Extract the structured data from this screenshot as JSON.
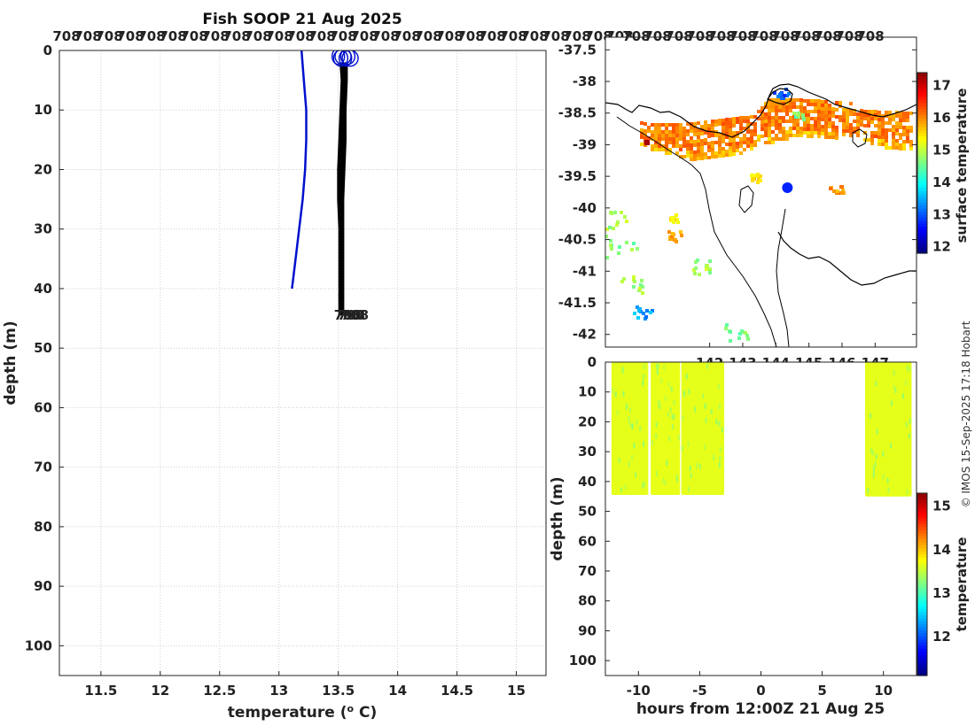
{
  "title": "Fish SOOP 21 Aug 2025",
  "credit": "© IMOS 15-Sep-2025 17:18 Hobart",
  "profile_tag": "708",
  "colors": {
    "profile": "#000000",
    "climatology": "#0011cc",
    "position_marker": "#0022ff",
    "coast": "#000000"
  },
  "chart_data": [
    {
      "type": "line",
      "name": "temperature-profile",
      "xlabel": "temperature (",
      "xlabel_unit": "o",
      "xlabel_suffix": " C)",
      "ylabel": "depth (m)",
      "xlim": [
        11.15,
        15.25
      ],
      "ylim": [
        0,
        105
      ],
      "y_reversed": true,
      "xticks": [
        11.5,
        12,
        12.5,
        13,
        13.5,
        14,
        14.5,
        15
      ],
      "yticks": [
        0,
        10,
        20,
        30,
        40,
        50,
        60,
        70,
        80,
        90,
        100
      ],
      "grid": true,
      "series": [
        {
          "color": "#0011cc",
          "style": "line",
          "x": [
            13.19,
            13.21,
            13.23,
            13.23,
            13.22,
            13.2,
            13.17,
            13.14,
            13.11
          ],
          "y": [
            0,
            5,
            10,
            15,
            20,
            25,
            30,
            35,
            40
          ]
        },
        {
          "color": "#000000",
          "style": "band",
          "x_min": [
            13.51,
            13.52,
            13.51,
            13.5,
            13.49,
            13.49,
            13.5,
            13.5,
            13.5,
            13.5
          ],
          "x_max": [
            13.58,
            13.58,
            13.57,
            13.57,
            13.56,
            13.55,
            13.55,
            13.55,
            13.55,
            13.55
          ],
          "y": [
            2,
            5,
            10,
            15,
            20,
            25,
            30,
            35,
            40,
            44.5
          ]
        }
      ],
      "annotations": {
        "surface_circles_x": [
          13.5,
          13.52,
          13.54,
          13.56,
          13.58,
          13.6
        ],
        "surface_circles_y": 1.0,
        "bottom_tags_x": [
          13.58,
          13.61,
          13.64
        ],
        "bottom_tags_y": 44.3
      }
    },
    {
      "type": "heatmap",
      "name": "sst-map",
      "colorbar_label": "surface temperature",
      "colorbar_range": [
        11.8,
        17.4
      ],
      "colorbar_ticks": [
        12,
        13,
        14,
        15,
        16,
        17
      ],
      "xlim": [
        138.85,
        148.25
      ],
      "ylim": [
        -42.2,
        -37.3
      ],
      "yticks": [
        -37.5,
        -38,
        -38.5,
        -39,
        -39.5,
        -40,
        -40.5,
        -41,
        -41.5,
        -42
      ],
      "yticklabels": [
        "-37.5",
        "-38",
        "-38.5",
        "-39",
        "-39.5",
        "-40",
        "-40.5",
        "-41",
        "-41.5",
        "-42"
      ],
      "xticks": [
        142,
        143,
        144,
        145,
        146,
        147
      ],
      "xticklabels": [
        "142",
        "143",
        "144",
        "145",
        "146",
        "147"
      ],
      "marker": {
        "lon": 144.35,
        "lat": -39.68
      }
    },
    {
      "type": "heatmap",
      "name": "depth-time-section",
      "xlabel": "hours from 12:00Z 21 Aug 25",
      "ylabel": "depth (m)",
      "colorbar_label": "temperature",
      "colorbar_range": [
        11.1,
        15.3
      ],
      "colorbar_ticks": [
        12,
        13,
        14,
        15
      ],
      "xlim": [
        -12.7,
        12.7
      ],
      "ylim": [
        0,
        105
      ],
      "xticks": [
        -10,
        -5,
        0,
        5,
        10
      ],
      "xticklabels": [
        "-10",
        "-5",
        "0",
        "5",
        "10"
      ],
      "yticks": [
        0,
        10,
        20,
        30,
        40,
        50,
        60,
        70,
        80,
        90,
        100
      ],
      "blocks": [
        {
          "x0": -12.2,
          "x1": -9.2,
          "dmax": 44.5,
          "temp": 13.62
        },
        {
          "x0": -9.0,
          "x1": -6.6,
          "dmax": 44.5,
          "temp": 13.63
        },
        {
          "x0": -6.5,
          "x1": -3.0,
          "dmax": 44.5,
          "temp": 13.62
        },
        {
          "x0": 8.5,
          "x1": 12.3,
          "dmax": 45.0,
          "temp": 13.62
        }
      ]
    }
  ]
}
